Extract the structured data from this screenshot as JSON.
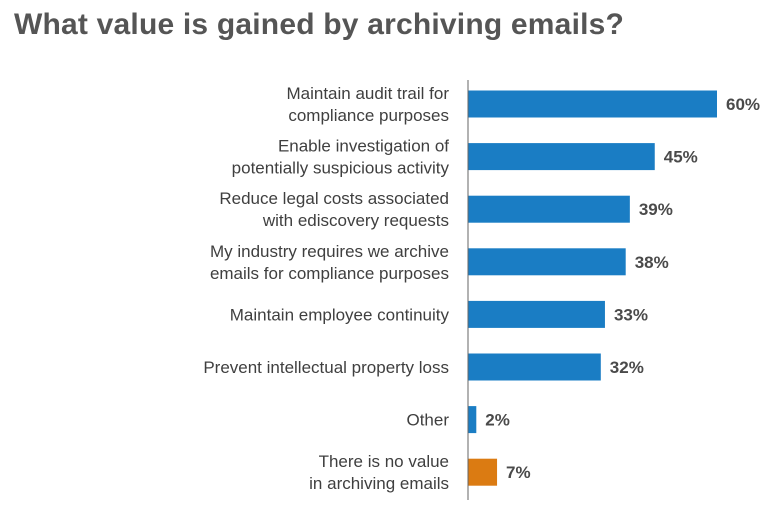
{
  "chart_data": {
    "type": "bar",
    "orientation": "horizontal",
    "title": "What value is gained by archiving emails?",
    "categories": [
      [
        "Maintain audit trail for",
        "compliance purposes"
      ],
      [
        "Enable investigation of",
        "potentially suspicious activity"
      ],
      [
        "Reduce legal costs associated",
        "with ediscovery requests"
      ],
      [
        "My industry requires we archive",
        "emails for compliance purposes"
      ],
      [
        "Maintain employee continuity"
      ],
      [
        "Prevent intellectual property loss"
      ],
      [
        "Other"
      ],
      [
        "There is no value",
        "in archiving emails"
      ]
    ],
    "values": [
      60,
      45,
      39,
      38,
      33,
      32,
      2,
      7
    ],
    "value_labels": [
      "60%",
      "45%",
      "39%",
      "38%",
      "33%",
      "32%",
      "2%",
      "7%"
    ],
    "bar_colors": [
      "#1a7dc4",
      "#1a7dc4",
      "#1a7dc4",
      "#1a7dc4",
      "#1a7dc4",
      "#1a7dc4",
      "#1a7dc4",
      "#db7b12"
    ],
    "axis_color": "#666666",
    "xlim": [
      0,
      60
    ],
    "grid": false,
    "legend": "none"
  }
}
